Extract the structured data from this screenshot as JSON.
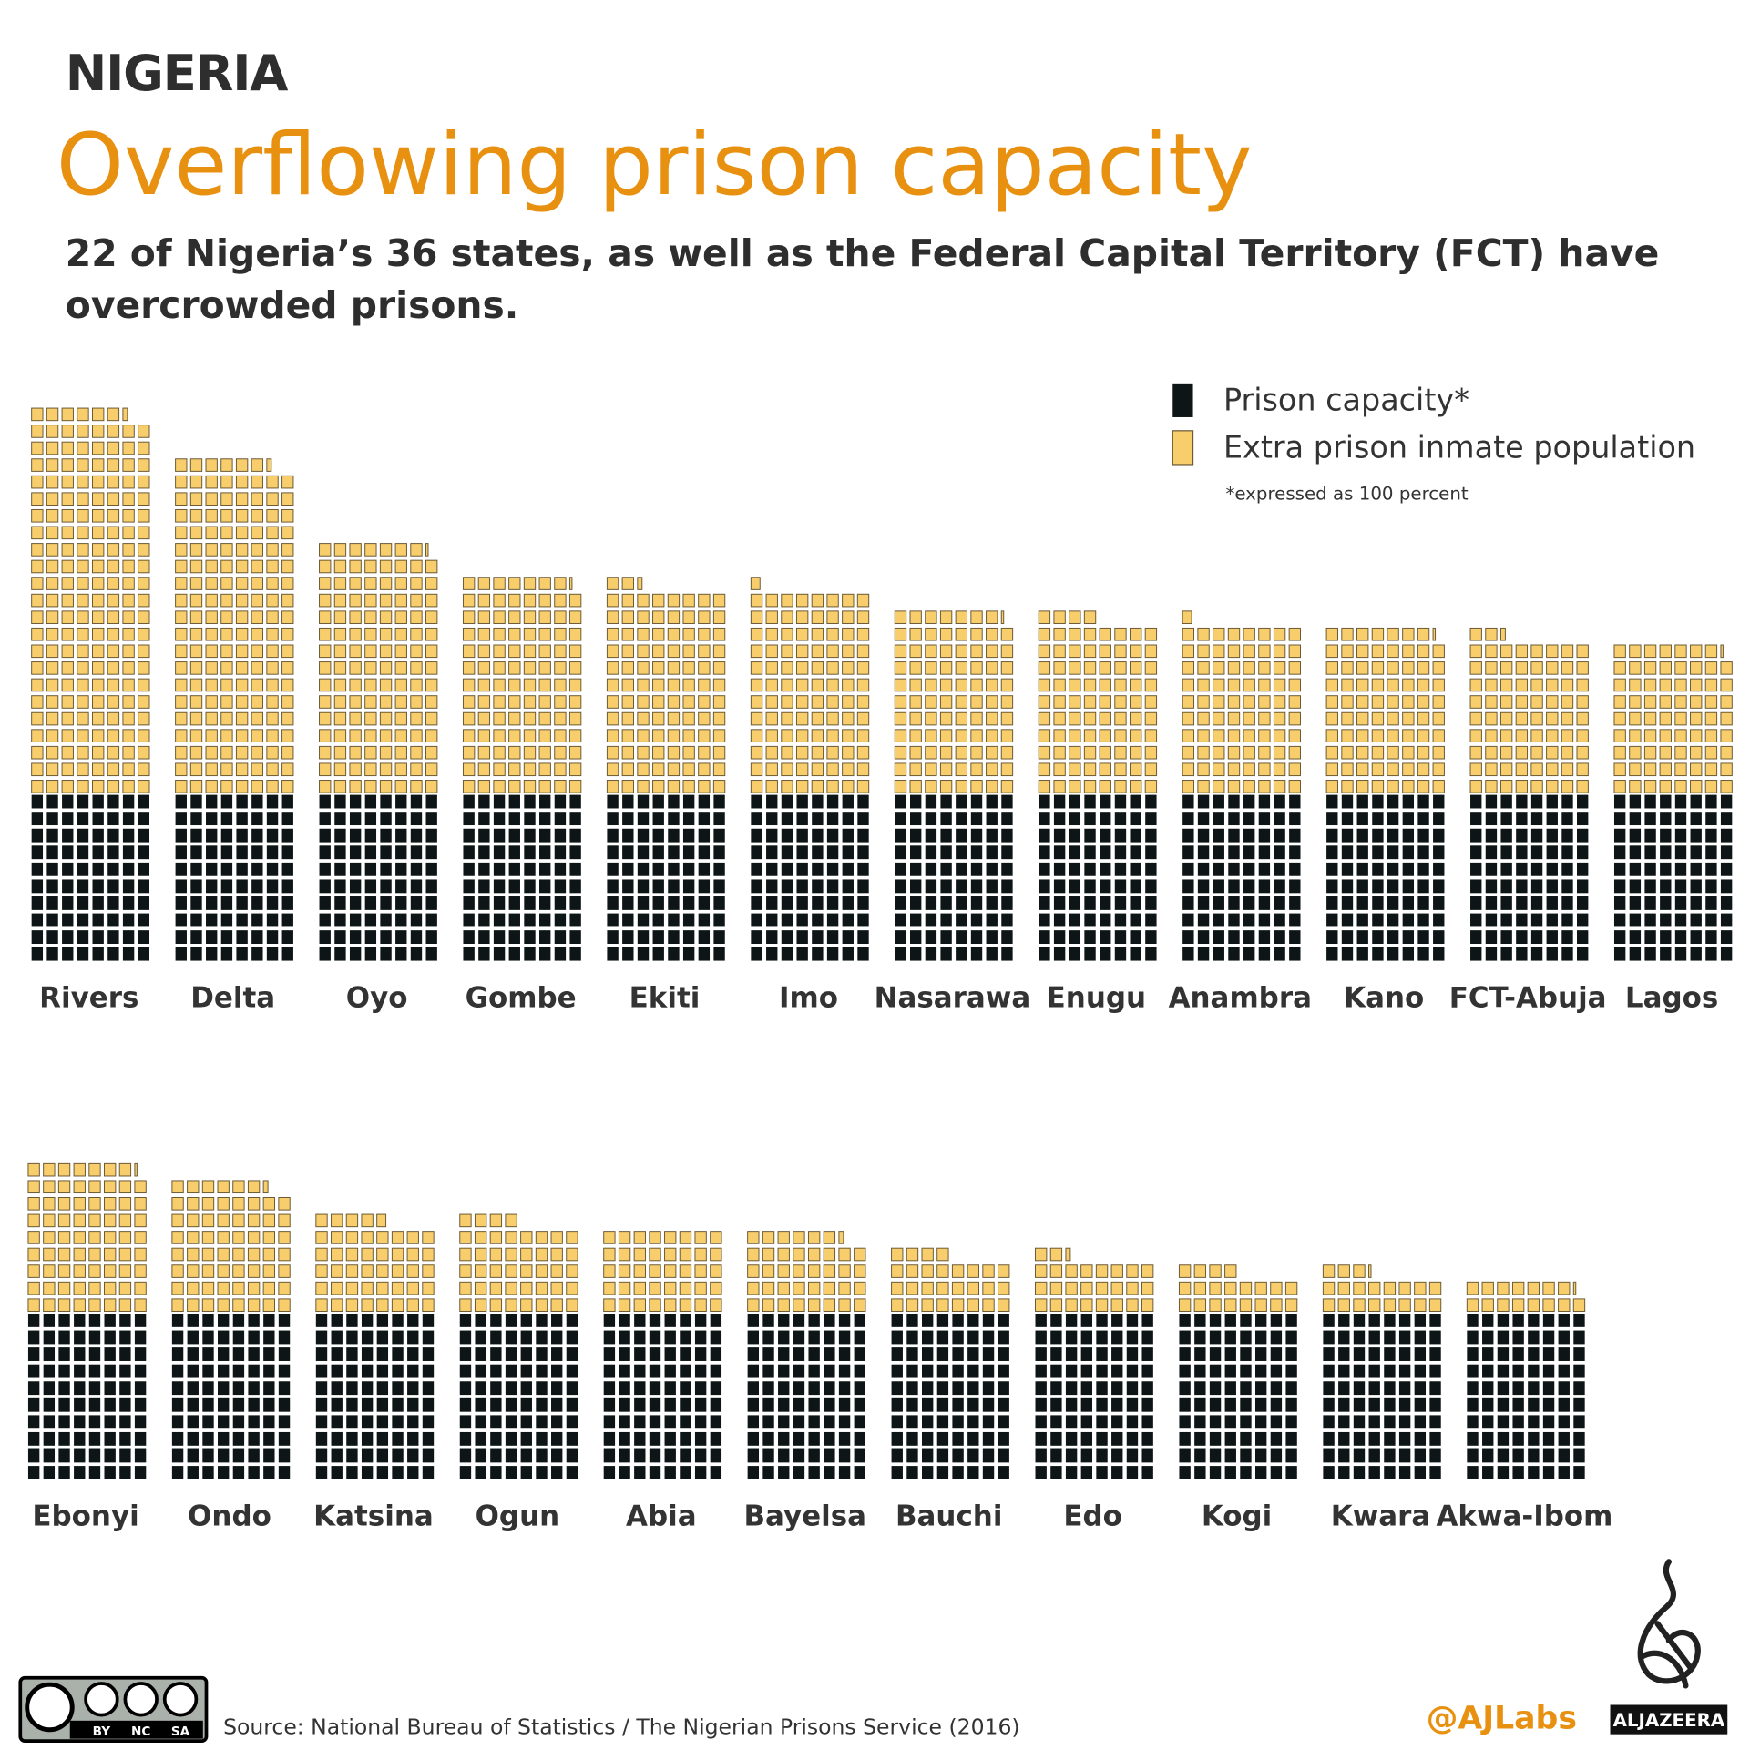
{
  "chart_data": {
    "type": "waffle",
    "supertitle": "NIGERIA",
    "title": "Overflowing prison capacity",
    "subtitle": [
      "22 of Nigeria’s 36 states, as well as the Federal Capital Territory (FCT) have",
      "overcrowded prisons."
    ],
    "note": "*expressed as 100 percent",
    "categories": [
      "Rivers",
      "Delta",
      "Oyo",
      "Gombe",
      "Ekiti",
      "Imo",
      "Nasarawa",
      "Enugu",
      "Anambra",
      "Kano",
      "FCT-Abuja",
      "Lagos",
      "Ebonyi",
      "Ondo",
      "Katsina",
      "Ogun",
      "Abia",
      "Bayelsa",
      "Bauchi",
      "Edo",
      "Kogi",
      "Kwara",
      "Akwa-Ibom"
    ],
    "series": [
      {
        "name": "Prison capacity*",
        "color": "#0d1517",
        "values": [
          100,
          100,
          100,
          100,
          100,
          100,
          100,
          100,
          100,
          100,
          100,
          100,
          100,
          100,
          100,
          100,
          100,
          100,
          100,
          100,
          100,
          100,
          100
        ]
      },
      {
        "name": "Extra prison inmate population",
        "color": "#f8cd6b",
        "values": [
          228,
          198,
          149,
          129,
          123,
          121,
          109,
          105,
          101,
          99,
          93,
          89,
          89,
          78,
          56,
          55,
          50,
          48,
          35,
          33,
          25,
          24,
          19
        ]
      }
    ],
    "source": "Source: National Bureau of Statistics / The Nigerian Prisons Service (2016)",
    "credit": "@AJLabs",
    "logo": "ALJAZEERA",
    "license_labels": [
      "BY",
      "NC",
      "SA"
    ]
  }
}
